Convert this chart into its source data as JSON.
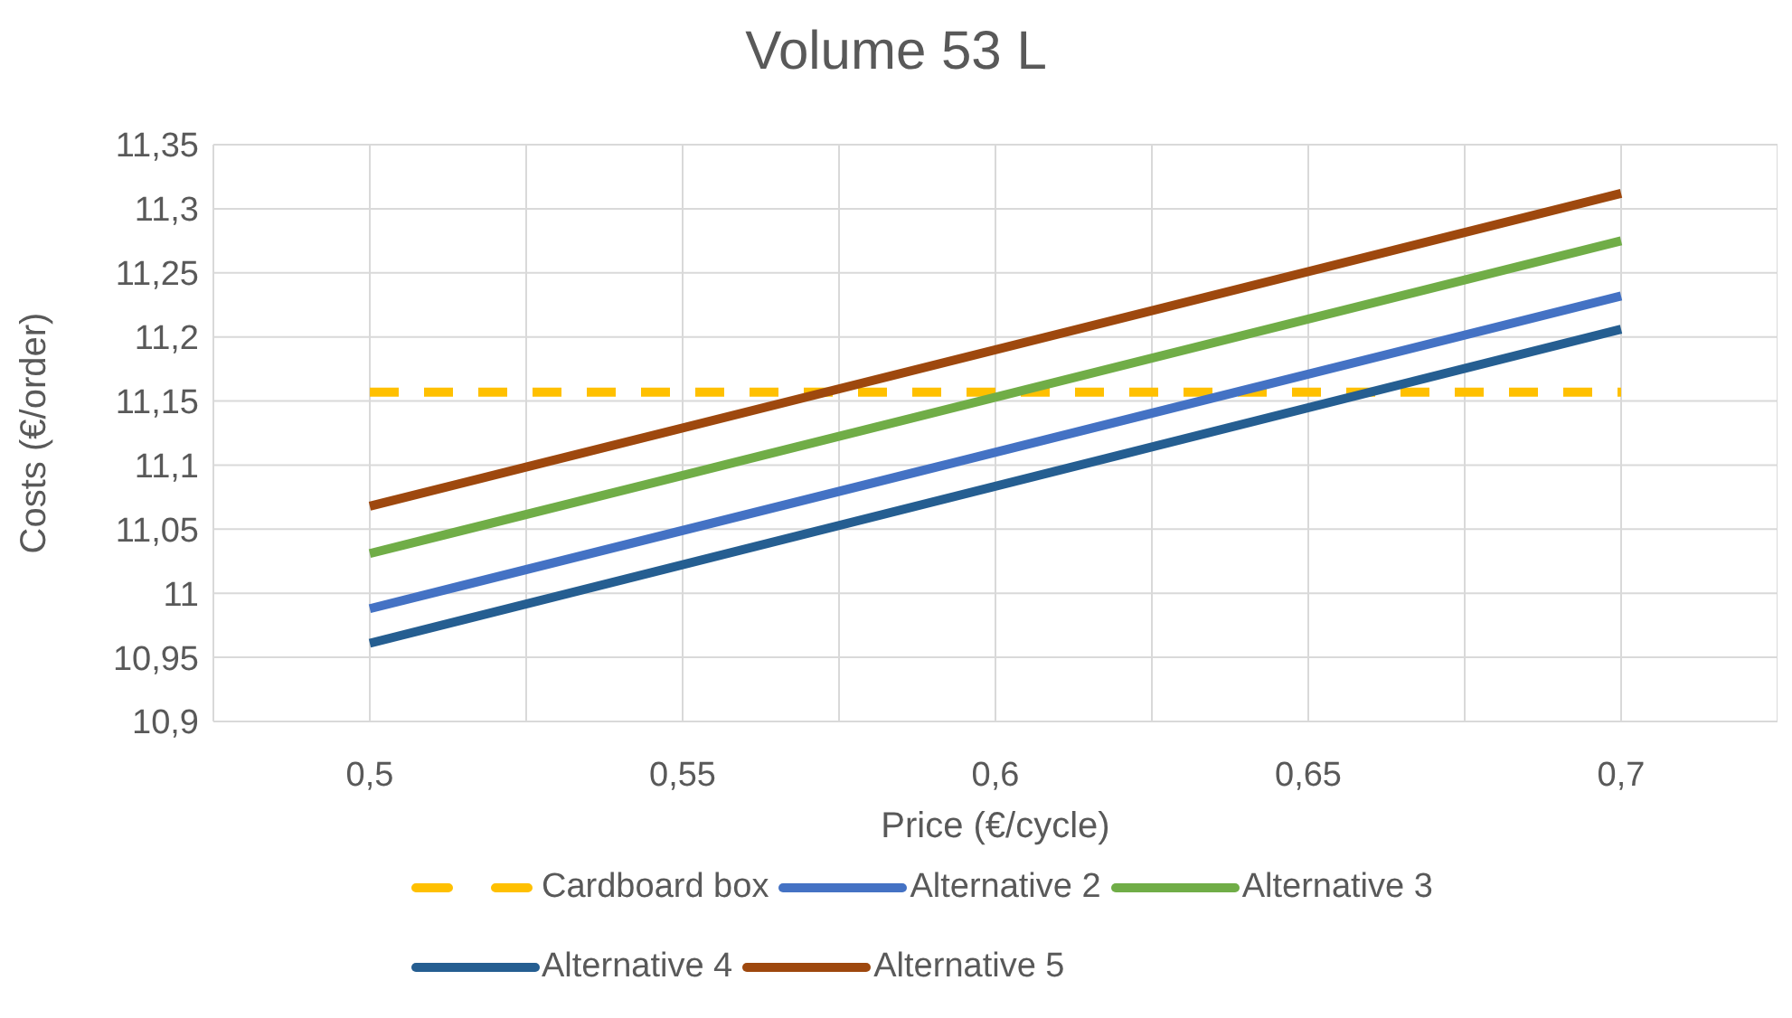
{
  "chart_data": {
    "type": "line",
    "title": "Volume 53 L",
    "xlabel": "Price (€/cycle)",
    "ylabel": "Costs (€/order)",
    "x": [
      0.5,
      0.7
    ],
    "series": [
      {
        "name": "Cardboard box",
        "color": "#ffc000",
        "line_style": "dashed",
        "values": [
          11.157,
          11.157
        ]
      },
      {
        "name": "Alternative 2",
        "color": "#4472c4",
        "values": [
          10.988,
          11.232
        ]
      },
      {
        "name": "Alternative 3",
        "color": "#70ad47",
        "values": [
          11.031,
          11.275
        ]
      },
      {
        "name": "Alternative 4",
        "color": "#255e91",
        "values": [
          10.961,
          11.206
        ]
      },
      {
        "name": "Alternative 5",
        "color": "#9e480e",
        "values": [
          11.068,
          11.312
        ]
      }
    ],
    "xlim": [
      0.475,
      0.725
    ],
    "xticks": [
      {
        "value": 0.475,
        "label": null
      },
      {
        "value": 0.5,
        "label": "0,5"
      },
      {
        "value": 0.525,
        "label": null
      },
      {
        "value": 0.55,
        "label": "0,55"
      },
      {
        "value": 0.575,
        "label": null
      },
      {
        "value": 0.6,
        "label": "0,6"
      },
      {
        "value": 0.625,
        "label": null
      },
      {
        "value": 0.65,
        "label": "0,65"
      },
      {
        "value": 0.675,
        "label": null
      },
      {
        "value": 0.7,
        "label": "0,7"
      },
      {
        "value": 0.725,
        "label": null
      }
    ],
    "ylim": [
      10.9,
      11.35
    ],
    "yticks": [
      {
        "value": 10.9,
        "label": "10,9"
      },
      {
        "value": 10.95,
        "label": "10,95"
      },
      {
        "value": 11,
        "label": "11"
      },
      {
        "value": 11.05,
        "label": "11,05"
      },
      {
        "value": 11.1,
        "label": "11,1"
      },
      {
        "value": 11.15,
        "label": "11,15"
      },
      {
        "value": 11.2,
        "label": "11,2"
      },
      {
        "value": 11.25,
        "label": "11,25"
      },
      {
        "value": 11.3,
        "label": "11,3"
      },
      {
        "value": 11.35,
        "label": "11,35"
      }
    ],
    "grid": true,
    "legend": "bottom",
    "marker": "none",
    "line_style": "solid"
  }
}
